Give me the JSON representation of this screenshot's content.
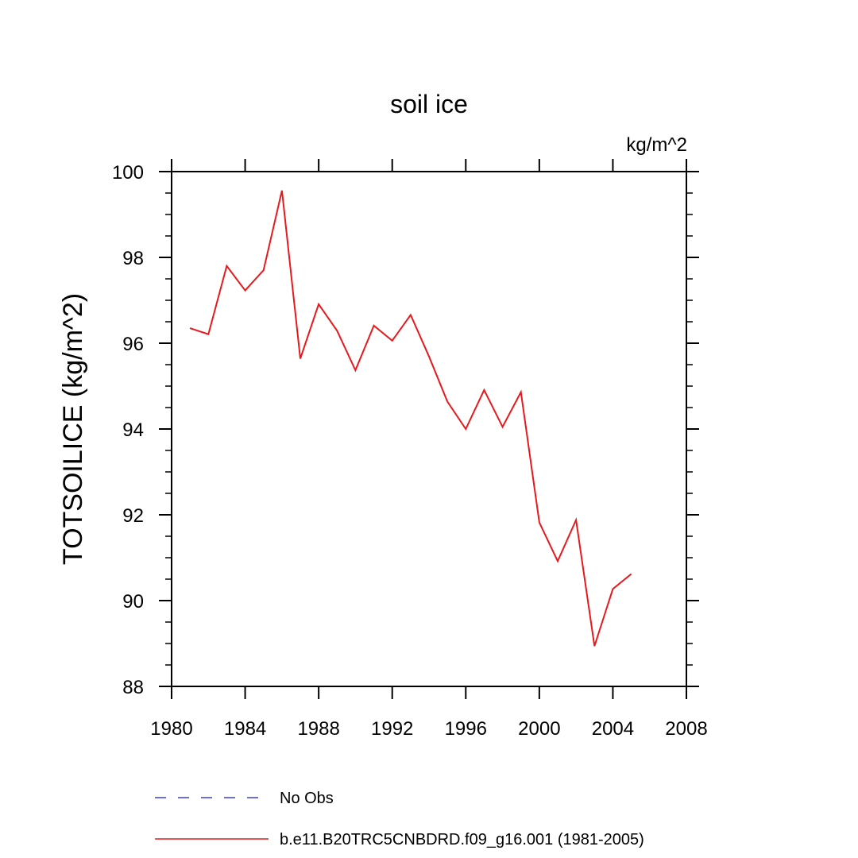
{
  "chart_data": {
    "type": "line",
    "title": "soil ice",
    "units_label": "kg/m^2",
    "ylabel": "TOTSOILICE  (kg/m^2)",
    "xlabel": "",
    "xlim": [
      1980,
      2008
    ],
    "ylim": [
      88,
      100
    ],
    "x_ticks": [
      1980,
      1984,
      1988,
      1992,
      1996,
      2000,
      2004,
      2008
    ],
    "y_ticks": [
      88,
      90,
      92,
      94,
      96,
      98,
      100
    ],
    "x_minor_step": 1,
    "y_minor_step": 0.5,
    "grid": false,
    "legend_position": "bottom",
    "series": [
      {
        "name": "b.e11.B20TRC5CNBDRD.f09_g16.001 (1981-2005)",
        "color": "#e8191d",
        "style": "solid",
        "x": [
          1981,
          1982,
          1983,
          1984,
          1985,
          1986,
          1987,
          1988,
          1989,
          1990,
          1991,
          1992,
          1993,
          1994,
          1995,
          1996,
          1997,
          1998,
          1999,
          2000,
          2001,
          2002,
          2003,
          2004,
          2005
        ],
        "values": [
          96.35,
          96.21,
          97.8,
          97.23,
          97.7,
          99.56,
          95.64,
          96.91,
          96.29,
          95.37,
          96.41,
          96.06,
          96.66,
          95.69,
          94.64,
          94.0,
          94.91,
          94.05,
          94.86,
          91.82,
          90.92,
          91.88,
          88.94,
          90.27,
          90.62
        ]
      }
    ],
    "legend": [
      {
        "label": "No Obs",
        "color": "#3b3bd9",
        "style": "dashed"
      },
      {
        "label": "b.e11.B20TRC5CNBDRD.f09_g16.001 (1981-2005)",
        "color": "#e8191d",
        "style": "solid"
      }
    ]
  }
}
